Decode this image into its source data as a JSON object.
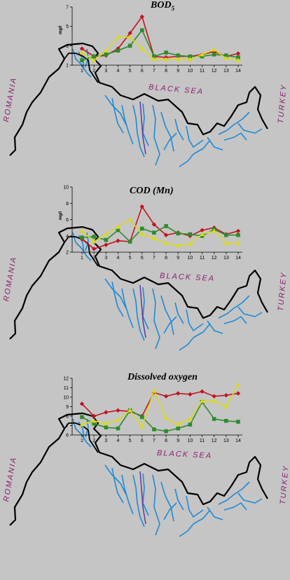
{
  "map_labels": {
    "romania": "ROMANIA",
    "black_sea": "BLACK SEA",
    "turkey": "TURKEY"
  },
  "colors": {
    "background": "#c5c5c5",
    "border": "#000000",
    "river": "#1e8ad6",
    "red_series": "#c0141e",
    "green_series": "#2e8b2e",
    "yellow_series": "#d9d91e",
    "label": "#8b1e6e"
  },
  "chart_data": [
    {
      "type": "line",
      "title": "BOD",
      "title_sub": "5",
      "ylabel": "mg/l",
      "ylim": [
        1,
        7
      ],
      "yticks": [
        "1",
        "3",
        "5",
        "7"
      ],
      "x": [
        "1",
        "2",
        "3",
        "4",
        "5",
        "6",
        "7",
        "8",
        "9",
        "10",
        "11",
        "12",
        "13",
        "14"
      ],
      "series": [
        {
          "color": "red",
          "marker": "diamond",
          "values": [
            2.7,
            1.9,
            2.0,
            2.7,
            4.3,
            6.0,
            1.9,
            1.8,
            1.9,
            1.9,
            2.1,
            2.4,
            1.9,
            2.2
          ]
        },
        {
          "color": "green",
          "marker": "square",
          "values": [
            1.5,
            1.9,
            2.1,
            2.5,
            3.0,
            4.6,
            1.9,
            2.3,
            2.0,
            1.9,
            1.9,
            2.1,
            2.0,
            1.8
          ]
        },
        {
          "color": "yellow",
          "marker": "triangle",
          "values": [
            2.3,
            1.5,
            2.5,
            3.9,
            3.9,
            2.7,
            1.6,
            1.6,
            1.6,
            1.6,
            2.1,
            2.6,
            1.7,
            1.5
          ]
        }
      ]
    },
    {
      "type": "line",
      "title": "COD (Mn)",
      "ylabel": "mg/l",
      "ylim": [
        2,
        10
      ],
      "yticks": [
        "2",
        "4",
        "6",
        "8",
        "10"
      ],
      "x": [
        "1",
        "2",
        "3",
        "4",
        "5",
        "6",
        "7",
        "8",
        "9",
        "10",
        "11",
        "12",
        "13",
        "14"
      ],
      "series": [
        {
          "color": "red",
          "marker": "diamond",
          "values": [
            3.6,
            2.4,
            2.9,
            3.4,
            3.3,
            7.6,
            5.4,
            4.1,
            4.4,
            4.0,
            4.7,
            5.0,
            4.2,
            4.6
          ]
        },
        {
          "color": "green",
          "marker": "square",
          "values": [
            3.8,
            3.9,
            3.5,
            4.7,
            3.3,
            4.9,
            4.4,
            5.2,
            4.3,
            4.2,
            4.0,
            4.8,
            4.1,
            4.1
          ]
        },
        {
          "color": "yellow",
          "marker": "triangle",
          "values": [
            4.6,
            3.3,
            4.2,
            5.1,
            6.0,
            4.2,
            3.7,
            3.1,
            2.8,
            3.0,
            4.2,
            4.6,
            3.1,
            3.1
          ]
        }
      ]
    },
    {
      "type": "line",
      "title": "Dissolved oxygen",
      "ylim": [
        6,
        12
      ],
      "yticks": [
        "6",
        "7",
        "8",
        "9",
        "10",
        "11",
        "12"
      ],
      "x": [
        "1",
        "2",
        "3",
        "4",
        "5",
        "6",
        "7",
        "8",
        "9",
        "10",
        "11",
        "12",
        "13",
        "14"
      ],
      "series": [
        {
          "color": "red",
          "marker": "diamond",
          "values": [
            9.3,
            8.0,
            8.4,
            8.6,
            8.5,
            8.0,
            10.5,
            10.1,
            10.4,
            10.3,
            10.6,
            10.1,
            10.2,
            10.4
          ]
        },
        {
          "color": "green",
          "marker": "square",
          "values": [
            7.9,
            7.2,
            6.8,
            6.7,
            8.6,
            7.9,
            6.6,
            6.4,
            6.7,
            7.1,
            9.5,
            7.7,
            7.5,
            7.4
          ]
        },
        {
          "color": "yellow",
          "marker": "triangle",
          "values": [
            7.1,
            7.5,
            7.2,
            7.6,
            8.6,
            6.9,
            10.7,
            7.8,
            7.1,
            7.7,
            9.6,
            9.6,
            9.0,
            11.3
          ]
        }
      ]
    }
  ]
}
